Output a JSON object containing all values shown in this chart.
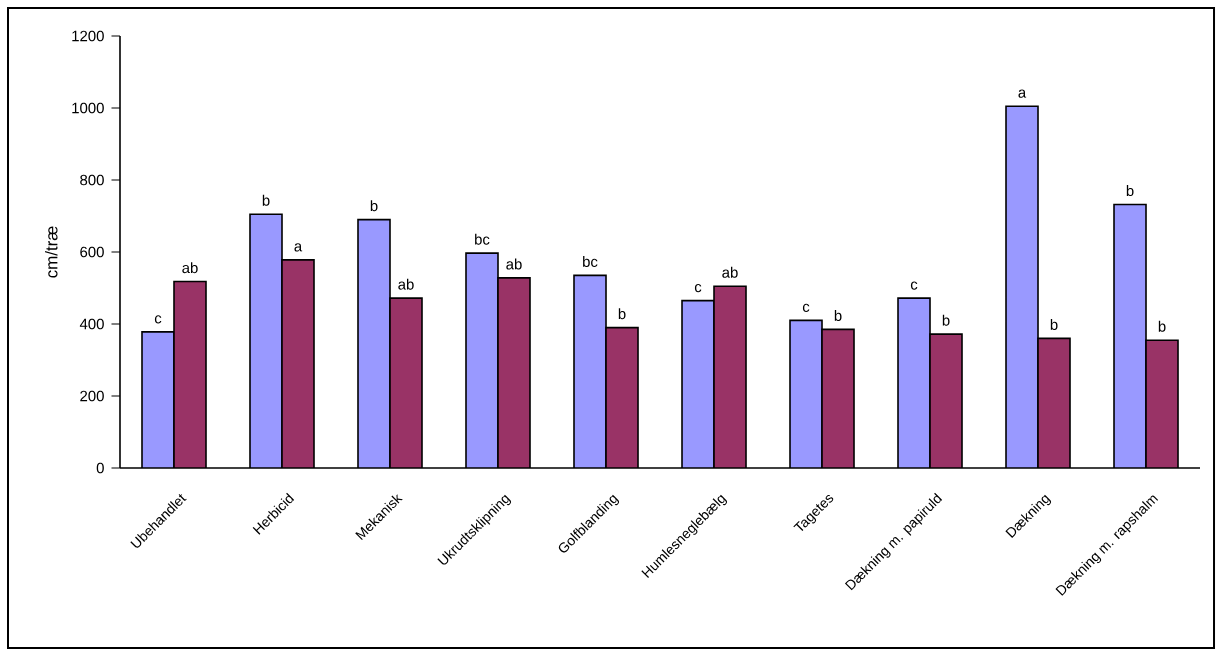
{
  "chart_data": {
    "type": "bar",
    "ylabel": "cm/træ",
    "categories": [
      "Ubehandlet",
      "Herbicid",
      "Mekanisk",
      "Ukrudtsklipning",
      "Golfblanding",
      "Humlesneglebælg",
      "Tagetes",
      "Dækning m. papiruld",
      "Dækning",
      "Dækning m. rapshalm"
    ],
    "series": [
      {
        "color": "#9999ff",
        "values": [
          378,
          705,
          690,
          597,
          535,
          465,
          410,
          472,
          1005,
          732
        ],
        "value_labels": [
          "c",
          "b",
          "b",
          "bc",
          "bc",
          "c",
          "c",
          "c",
          "a",
          "b"
        ]
      },
      {
        "color": "#993366",
        "values": [
          518,
          578,
          472,
          528,
          390,
          505,
          385,
          372,
          360,
          355
        ],
        "value_labels": [
          "ab",
          "a",
          "ab",
          "ab",
          "b",
          "ab",
          "b",
          "b",
          "b",
          "b"
        ]
      }
    ],
    "ylim": [
      0,
      1200
    ],
    "yticks": [
      0,
      200,
      400,
      600,
      800,
      1000,
      1200
    ]
  }
}
